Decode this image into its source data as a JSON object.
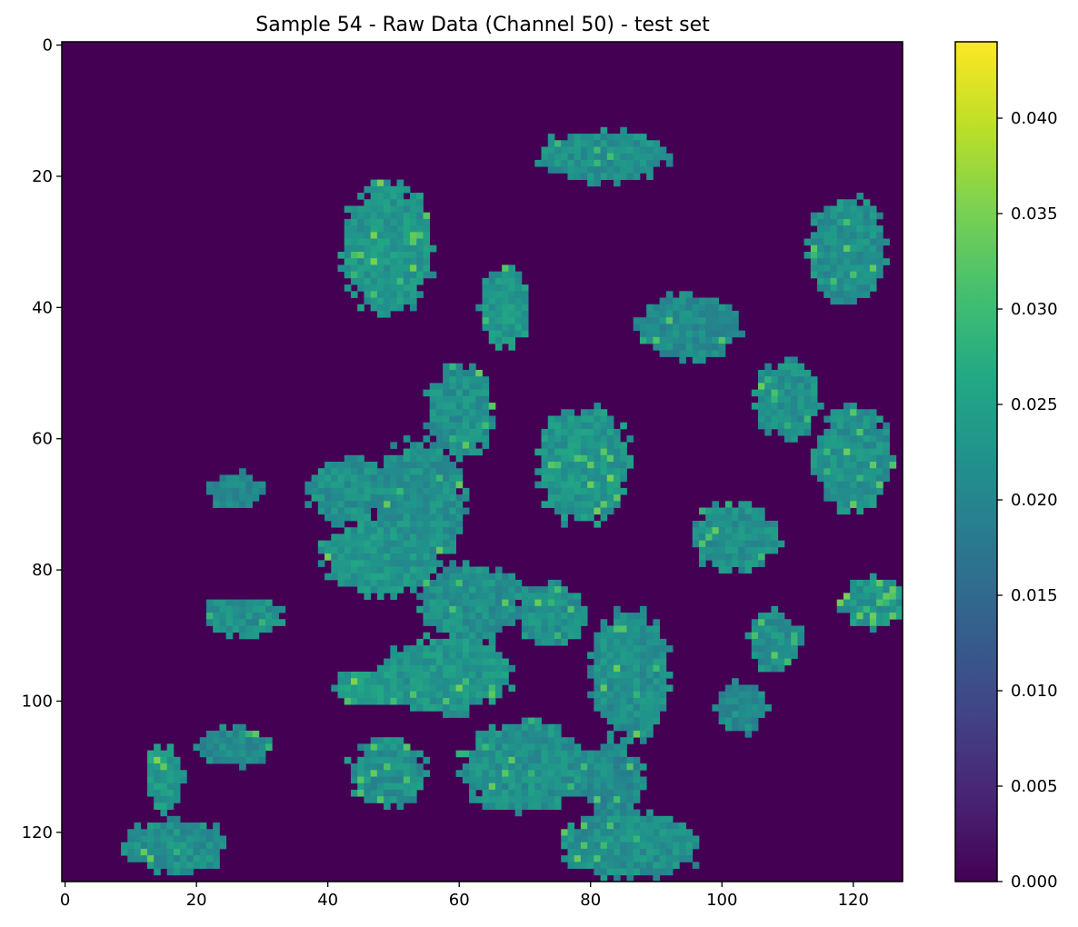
{
  "chart_data": {
    "type": "heatmap",
    "title": "Sample 54 - Raw Data (Channel 50) - test set",
    "xlabel": "",
    "ylabel": "",
    "grid": false,
    "colormap": "viridis",
    "image_shape": [
      128,
      128
    ],
    "xlim": [
      -0.5,
      127.5
    ],
    "ylim": [
      127.5,
      -0.5
    ],
    "x_ticks": [
      0,
      20,
      40,
      60,
      80,
      100,
      120
    ],
    "x_tick_labels": [
      "0",
      "20",
      "40",
      "60",
      "80",
      "100",
      "120"
    ],
    "y_ticks": [
      0,
      20,
      40,
      60,
      80,
      100,
      120
    ],
    "y_tick_labels": [
      "0",
      "20",
      "40",
      "60",
      "80",
      "100",
      "120"
    ],
    "colorbar": {
      "range": [
        0.0,
        0.044
      ],
      "ticks": [
        0.0,
        0.005,
        0.01,
        0.015,
        0.02,
        0.025,
        0.03,
        0.035,
        0.04
      ],
      "tick_labels": [
        "0.000",
        "0.005",
        "0.010",
        "0.015",
        "0.020",
        "0.025",
        "0.030",
        "0.035",
        "0.040"
      ]
    },
    "background_value": 0.0,
    "regions": [
      {
        "cx": 58,
        "cy": 96,
        "rx": 10,
        "ry": 6,
        "value": 0.023
      },
      {
        "cx": 47,
        "cy": 98,
        "rx": 6,
        "ry": 3,
        "value": 0.024
      },
      {
        "cx": 62,
        "cy": 85,
        "rx": 8,
        "ry": 6,
        "value": 0.022
      },
      {
        "cx": 74,
        "cy": 87,
        "rx": 5,
        "ry": 5,
        "value": 0.022
      },
      {
        "cx": 70,
        "cy": 110,
        "rx": 10,
        "ry": 7,
        "value": 0.022
      },
      {
        "cx": 83,
        "cy": 112,
        "rx": 5,
        "ry": 6,
        "value": 0.021
      },
      {
        "cx": 86,
        "cy": 96,
        "rx": 6,
        "ry": 10,
        "value": 0.022
      },
      {
        "cx": 86,
        "cy": 122,
        "rx": 11,
        "ry": 5,
        "value": 0.022
      },
      {
        "cx": 48,
        "cy": 78,
        "rx": 9,
        "ry": 6,
        "value": 0.023
      },
      {
        "cx": 43,
        "cy": 68,
        "rx": 6,
        "ry": 5,
        "value": 0.022
      },
      {
        "cx": 54,
        "cy": 70,
        "rx": 7,
        "ry": 10,
        "value": 0.022
      },
      {
        "cx": 60,
        "cy": 56,
        "rx": 5,
        "ry": 7,
        "value": 0.022
      },
      {
        "cx": 79,
        "cy": 64,
        "rx": 7,
        "ry": 9,
        "value": 0.023
      },
      {
        "cx": 67,
        "cy": 40,
        "rx": 4,
        "ry": 6,
        "value": 0.023
      },
      {
        "cx": 95,
        "cy": 43,
        "rx": 8,
        "ry": 5,
        "value": 0.021
      },
      {
        "cx": 110,
        "cy": 54,
        "rx": 5,
        "ry": 6,
        "value": 0.022
      },
      {
        "cx": 120,
        "cy": 63,
        "rx": 6,
        "ry": 8,
        "value": 0.022
      },
      {
        "cx": 102,
        "cy": 75,
        "rx": 7,
        "ry": 5,
        "value": 0.022
      },
      {
        "cx": 123,
        "cy": 85,
        "rx": 5,
        "ry": 4,
        "value": 0.023
      },
      {
        "cx": 108,
        "cy": 91,
        "rx": 4,
        "ry": 5,
        "value": 0.022
      },
      {
        "cx": 103,
        "cy": 101,
        "rx": 4,
        "ry": 4,
        "value": 0.021
      },
      {
        "cx": 49,
        "cy": 31,
        "rx": 7,
        "ry": 10,
        "value": 0.023
      },
      {
        "cx": 82,
        "cy": 17,
        "rx": 10,
        "ry": 4,
        "value": 0.022
      },
      {
        "cx": 119,
        "cy": 31,
        "rx": 6,
        "ry": 8,
        "value": 0.022
      },
      {
        "cx": 27,
        "cy": 87,
        "rx": 6,
        "ry": 3,
        "value": 0.022
      },
      {
        "cx": 26,
        "cy": 68,
        "rx": 4,
        "ry": 3,
        "value": 0.021
      },
      {
        "cx": 49,
        "cy": 111,
        "rx": 6,
        "ry": 5,
        "value": 0.022
      },
      {
        "cx": 17,
        "cy": 122,
        "rx": 8,
        "ry": 4,
        "value": 0.022
      },
      {
        "cx": 15,
        "cy": 112,
        "rx": 3,
        "ry": 5,
        "value": 0.024
      },
      {
        "cx": 26,
        "cy": 107,
        "rx": 6,
        "ry": 3,
        "value": 0.021
      }
    ]
  }
}
